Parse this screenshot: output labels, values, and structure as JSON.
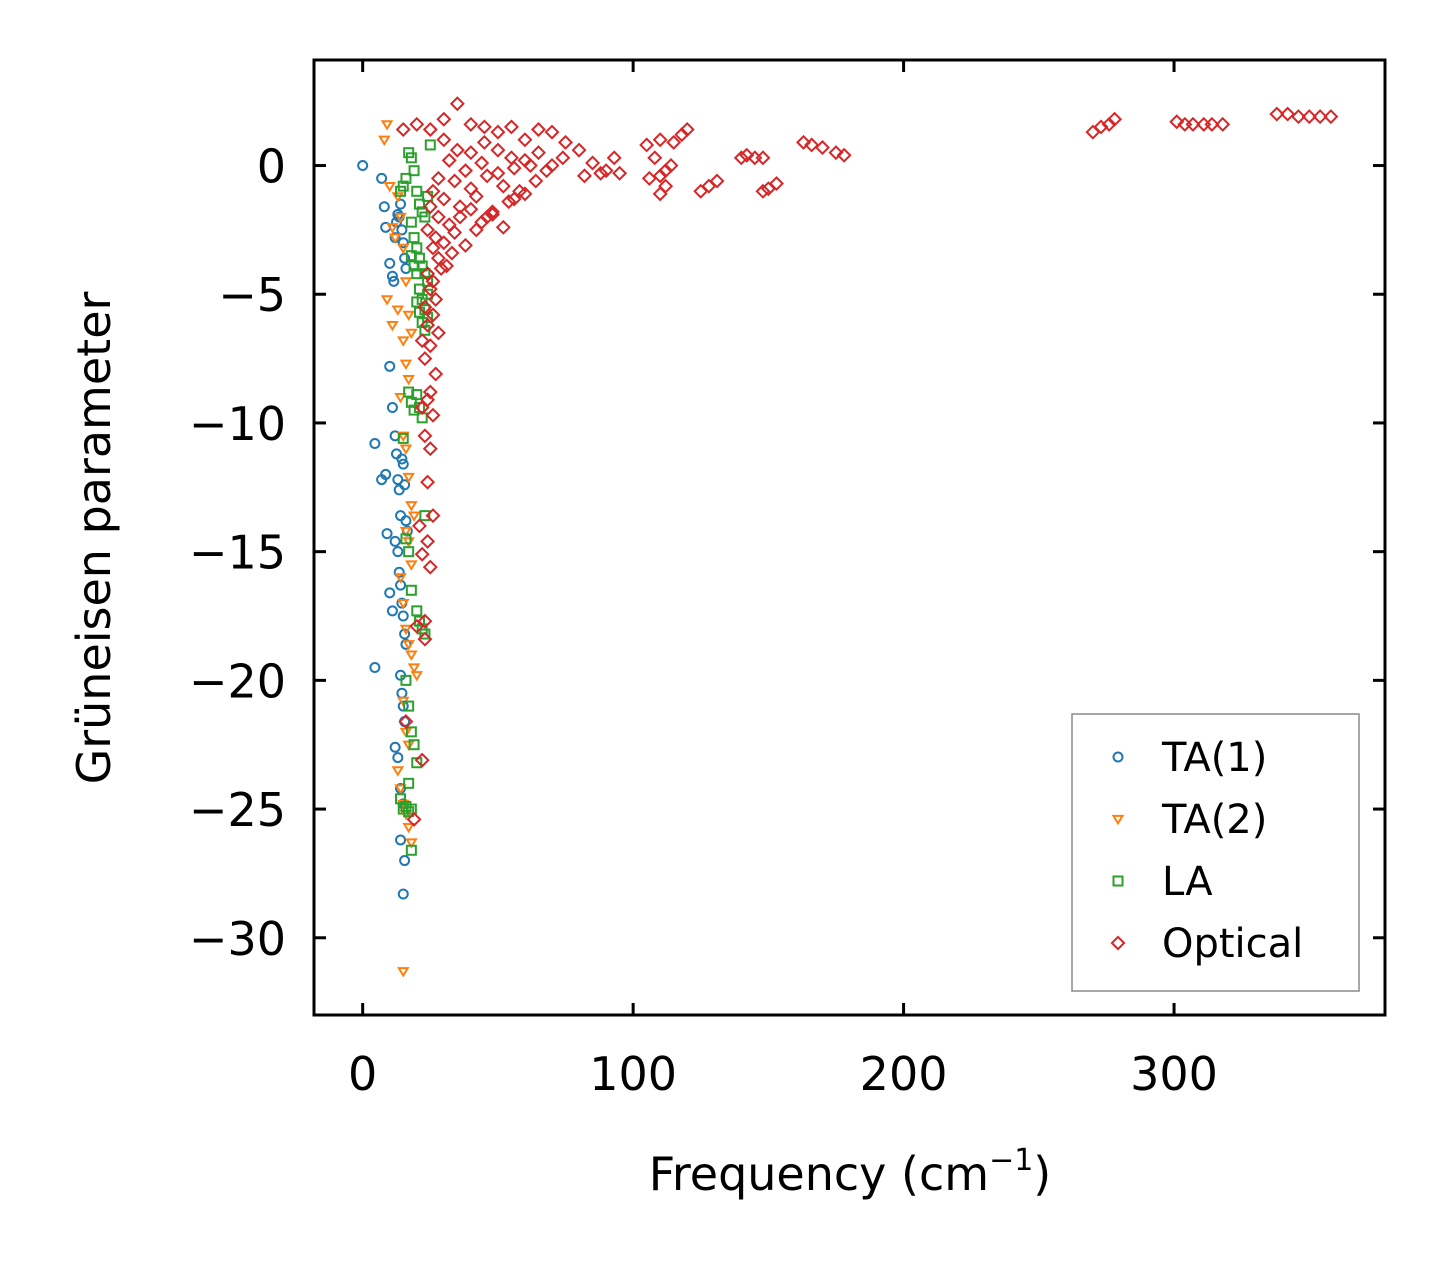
{
  "chart_data": {
    "type": "scatter",
    "title": "",
    "xlabel": "Frequency (cm",
    "xlabel_sup": "−1",
    "xlabel_close": ")",
    "ylabel": "Grüneisen parameter",
    "xlim": [
      -18,
      378
    ],
    "ylim": [
      -33,
      4.1
    ],
    "x_ticks": [
      0,
      100,
      200,
      300
    ],
    "x_tick_labels": [
      "0",
      "100",
      "200",
      "300"
    ],
    "y_ticks": [
      0,
      -5,
      -10,
      -15,
      -20,
      -25,
      -30
    ],
    "y_tick_labels": [
      "0",
      "−5",
      "−10",
      "−15",
      "−20",
      "−25",
      "−30"
    ],
    "grid": false,
    "legend_position": "lower-right",
    "series": [
      {
        "name": "TA(1)",
        "marker": "circle",
        "color": "#1f77b4",
        "x": [
          0,
          7,
          8,
          8.5,
          10,
          11,
          11.5,
          12,
          12.5,
          13,
          13.5,
          14,
          14.5,
          15,
          15.5,
          16,
          4.5,
          7,
          8.5,
          10,
          11,
          12,
          12.5,
          13,
          13.5,
          14,
          14.5,
          15,
          15.5,
          16,
          16.5,
          9,
          10,
          11,
          4.5,
          12,
          13,
          13.5,
          14,
          14.5,
          15,
          15.5,
          16,
          14,
          14.5,
          15,
          15.5,
          12,
          13,
          14,
          15,
          14,
          15.5,
          15
        ],
        "y": [
          0,
          -0.5,
          -1.6,
          -2.4,
          -3.8,
          -4.3,
          -4.5,
          -2.8,
          -2.2,
          -1.9,
          -2.0,
          -1.5,
          -2.5,
          -3.0,
          -3.6,
          -4.0,
          -10.8,
          -12.2,
          -12.0,
          -7.8,
          -9.4,
          -10.5,
          -11.2,
          -12.2,
          -12.6,
          -13.6,
          -11.4,
          -11.6,
          -12.4,
          -13.8,
          -14.2,
          -14.3,
          -16.6,
          -17.3,
          -19.5,
          -14.6,
          -15.0,
          -15.8,
          -16.3,
          -17.0,
          -17.5,
          -18.2,
          -18.6,
          -19.8,
          -20.5,
          -21.0,
          -21.6,
          -22.6,
          -23.0,
          -24.2,
          -24.8,
          -26.2,
          -27.0,
          -28.3
        ]
      },
      {
        "name": "TA(2)",
        "marker": "triangle-down",
        "color": "#ff7f0e",
        "x": [
          8,
          9,
          10,
          11,
          12,
          13,
          14,
          15,
          16,
          17,
          18,
          9,
          11,
          13,
          15,
          16,
          17,
          14,
          15,
          16,
          17,
          18,
          19,
          16,
          17,
          18,
          14,
          15,
          16,
          17,
          18,
          19,
          20,
          15,
          16,
          17,
          13,
          14,
          15,
          16,
          17,
          18,
          15
        ],
        "y": [
          1.0,
          1.6,
          -0.8,
          -2.4,
          -2.8,
          -1.2,
          -2.0,
          -3.2,
          -4.5,
          -5.8,
          -6.5,
          -5.2,
          -6.2,
          -5.6,
          -6.8,
          -7.7,
          -8.3,
          -9.0,
          -10.5,
          -11.0,
          -12.1,
          -13.2,
          -13.6,
          -14.2,
          -14.6,
          -15.5,
          -16.0,
          -17.0,
          -18.0,
          -18.6,
          -19.0,
          -19.5,
          -19.8,
          -20.8,
          -22.0,
          -22.5,
          -23.5,
          -24.2,
          -24.8,
          -25.2,
          -25.7,
          -26.3,
          -31.3
        ]
      },
      {
        "name": "LA",
        "marker": "square",
        "color": "#2ca02c",
        "x": [
          14,
          15,
          16,
          17,
          18,
          19,
          20,
          21,
          22,
          23,
          24,
          25,
          18,
          19,
          20,
          21,
          22,
          23,
          24,
          18,
          19,
          20,
          21,
          22,
          23,
          24,
          20,
          21,
          22,
          23,
          24,
          17,
          18,
          19,
          20,
          21,
          22,
          23,
          15,
          16,
          17,
          18,
          20,
          21,
          22,
          23,
          16,
          17,
          18,
          19,
          20,
          17,
          18,
          14,
          15,
          16,
          17,
          18
        ],
        "y": [
          -1.0,
          -0.8,
          -0.5,
          0.5,
          0.3,
          -0.2,
          -1.0,
          -1.5,
          -1.8,
          -2.0,
          -1.2,
          0.8,
          -2.2,
          -2.8,
          -3.2,
          -3.6,
          -3.9,
          -4.2,
          -4.5,
          -3.5,
          -3.9,
          -4.2,
          -4.8,
          -5.2,
          -5.6,
          -5.9,
          -5.3,
          -5.7,
          -6.1,
          -6.4,
          -5.0,
          -8.8,
          -9.2,
          -9.5,
          -8.9,
          -9.4,
          -9.8,
          -13.6,
          -10.6,
          -14.5,
          -15.0,
          -16.5,
          -17.3,
          -17.7,
          -18.0,
          -18.2,
          -20.0,
          -21.0,
          -22.0,
          -22.5,
          -23.2,
          -24.0,
          -25.0,
          -24.6,
          -25.0,
          -24.9,
          -25.1,
          -26.6
        ]
      },
      {
        "name": "Optical",
        "marker": "diamond",
        "color": "#d62728",
        "x": [
          15,
          20,
          25,
          30,
          35,
          40,
          45,
          50,
          55,
          60,
          65,
          70,
          75,
          30,
          35,
          40,
          45,
          50,
          55,
          60,
          65,
          70,
          32,
          38,
          44,
          50,
          56,
          62,
          68,
          74,
          28,
          34,
          40,
          46,
          52,
          58,
          64,
          26,
          30,
          36,
          42,
          48,
          54,
          60,
          25,
          28,
          32,
          36,
          40,
          44,
          48,
          52,
          56,
          24,
          27,
          30,
          34,
          38,
          42,
          46,
          26,
          28,
          31,
          24,
          26,
          29,
          33,
          25,
          27,
          23,
          26,
          24,
          28,
          22,
          25,
          23,
          27,
          25,
          24,
          22,
          26,
          23,
          25,
          24,
          26,
          21,
          24,
          22,
          25,
          23,
          20,
          23,
          16,
          22,
          19,
          80,
          85,
          90,
          95,
          82,
          88,
          93,
          105,
          108,
          110,
          112,
          115,
          118,
          120,
          106,
          110,
          114,
          110,
          112,
          125,
          128,
          131,
          140,
          142,
          145,
          148,
          148,
          150,
          153,
          163,
          166,
          170,
          175,
          178,
          270,
          273,
          276,
          278,
          301,
          304,
          307,
          311,
          314,
          318,
          338,
          342,
          346,
          350,
          354,
          358
        ],
        "y": [
          1.4,
          1.6,
          1.4,
          1.8,
          2.4,
          1.6,
          1.5,
          1.3,
          1.5,
          1.0,
          1.4,
          1.3,
          0.9,
          1.0,
          0.6,
          0.5,
          0.9,
          0.6,
          0.3,
          0.2,
          0.5,
          0.0,
          0.2,
          -0.2,
          0.1,
          -0.3,
          -0.1,
          0.0,
          -0.2,
          0.3,
          -0.5,
          -0.6,
          -0.9,
          -0.4,
          -0.8,
          -1.0,
          -0.6,
          -1.0,
          -1.3,
          -1.6,
          -1.2,
          -1.8,
          -1.4,
          -1.1,
          -1.6,
          -2.0,
          -2.3,
          -2.0,
          -1.7,
          -2.2,
          -1.9,
          -2.4,
          -1.3,
          -2.5,
          -2.8,
          -3.0,
          -2.6,
          -3.1,
          -2.5,
          -2.0,
          -3.2,
          -3.6,
          -3.9,
          -4.2,
          -4.5,
          -4.0,
          -3.4,
          -4.8,
          -5.2,
          -5.5,
          -5.8,
          -6.2,
          -6.5,
          -6.8,
          -7.0,
          -7.5,
          -8.1,
          -8.8,
          -9.1,
          -9.4,
          -9.7,
          -10.5,
          -11.0,
          -12.3,
          -13.6,
          -14.0,
          -14.6,
          -15.1,
          -15.6,
          -17.7,
          -17.9,
          -18.4,
          -21.6,
          -23.1,
          -25.4,
          0.6,
          0.1,
          -0.2,
          -0.3,
          -0.4,
          -0.3,
          0.3,
          0.8,
          0.3,
          -0.4,
          -0.8,
          0.9,
          1.2,
          1.4,
          -0.5,
          1.0,
          0.0,
          -1.1,
          -0.2,
          -1.0,
          -0.8,
          -0.6,
          0.3,
          0.4,
          0.3,
          0.3,
          -1.0,
          -0.9,
          -0.7,
          0.9,
          0.8,
          0.7,
          0.5,
          0.4,
          1.3,
          1.5,
          1.6,
          1.8,
          1.7,
          1.6,
          1.6,
          1.6,
          1.6,
          1.6,
          2.0,
          2.0,
          1.9,
          1.9,
          1.9,
          1.9
        ]
      }
    ]
  }
}
